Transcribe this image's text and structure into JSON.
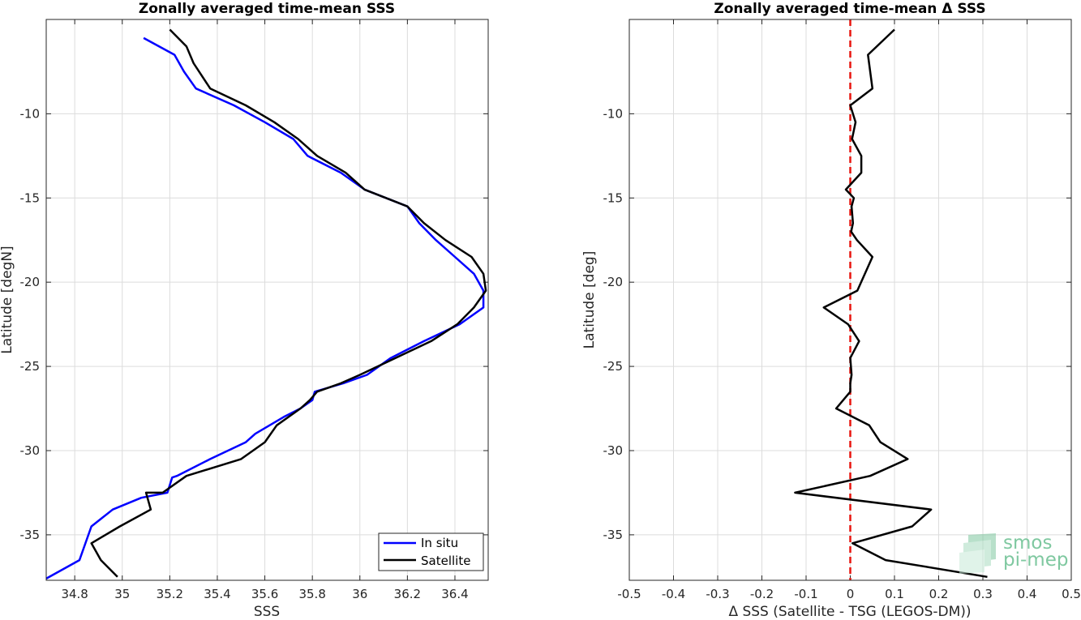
{
  "chart_data": [
    {
      "type": "line",
      "title": "Zonally averaged time-mean SSS",
      "xlabel": "SSS",
      "ylabel": "Latitude [degN]",
      "xlim": [
        34.68,
        36.54
      ],
      "ylim": [
        -37.7,
        -4.4
      ],
      "xticks": [
        34.8,
        35,
        35.2,
        35.4,
        35.6,
        35.8,
        36,
        36.2,
        36.4
      ],
      "xtick_labels": [
        "34.8",
        "35",
        "35.2",
        "35.4",
        "35.6",
        "35.8",
        "36",
        "36.2",
        "36.4"
      ],
      "yticks": [
        -35,
        -30,
        -25,
        -20,
        -15,
        -10
      ],
      "ytick_labels": [
        "-35",
        "-30",
        "-25",
        "-20",
        "-15",
        "-10"
      ],
      "grid": true,
      "legend_position": "bottom-right",
      "series": [
        {
          "name": "In situ",
          "color": "#0000ff",
          "x": [
            35.09,
            35.22,
            35.26,
            35.31,
            35.47,
            35.6,
            35.72,
            35.78,
            35.92,
            36.02,
            36.2,
            36.25,
            36.32,
            36.4,
            36.48,
            36.52,
            36.52,
            36.42,
            36.27,
            36.13,
            36.03,
            35.93,
            35.81,
            35.8,
            35.75,
            35.68,
            35.62,
            35.56,
            35.52,
            35.37,
            35.23,
            35.21,
            35.19,
            35.08,
            34.96,
            34.87,
            34.82,
            34.68
          ],
          "y": [
            -5.5,
            -6.5,
            -7.5,
            -8.5,
            -9.5,
            -10.5,
            -11.5,
            -12.5,
            -13.5,
            -14.5,
            -15.5,
            -16.5,
            -17.5,
            -18.5,
            -19.5,
            -20.5,
            -21.5,
            -22.5,
            -23.5,
            -24.5,
            -25.5,
            -26.0,
            -26.5,
            -27.0,
            -27.5,
            -28.0,
            -28.5,
            -29.0,
            -29.5,
            -30.5,
            -31.5,
            -31.6,
            -32.5,
            -32.8,
            -33.5,
            -34.5,
            -36.5,
            -37.6
          ]
        },
        {
          "name": "Satellite",
          "color": "#000000",
          "x": [
            35.2,
            35.27,
            35.3,
            35.37,
            35.52,
            35.64,
            35.74,
            35.82,
            35.94,
            36.02,
            36.2,
            36.27,
            36.36,
            36.47,
            36.52,
            36.53,
            36.48,
            36.41,
            36.3,
            36.15,
            36.0,
            35.92,
            35.82,
            35.79,
            35.75,
            35.7,
            35.65,
            35.6,
            35.5,
            35.27,
            35.17,
            35.1,
            35.12,
            34.99,
            34.87,
            34.91,
            34.98
          ],
          "y": [
            -5.0,
            -6.0,
            -7.0,
            -8.5,
            -9.5,
            -10.5,
            -11.5,
            -12.5,
            -13.5,
            -14.5,
            -15.5,
            -16.5,
            -17.5,
            -18.5,
            -19.5,
            -20.5,
            -21.5,
            -22.5,
            -23.5,
            -24.5,
            -25.5,
            -26.0,
            -26.5,
            -27.0,
            -27.5,
            -28.0,
            -28.5,
            -29.5,
            -30.5,
            -31.5,
            -32.5,
            -32.5,
            -33.5,
            -34.5,
            -35.5,
            -36.5,
            -37.5
          ]
        }
      ]
    },
    {
      "type": "line",
      "title": "Zonally averaged time-mean Δ SSS",
      "xlabel": "Δ SSS (Satellite - TSG (LEGOS-DM))",
      "ylabel": "Latitude [deg]",
      "xlim": [
        -0.5,
        0.5
      ],
      "ylim": [
        -37.7,
        -4.4
      ],
      "xticks": [
        -0.5,
        -0.4,
        -0.3,
        -0.2,
        -0.1,
        0,
        0.1,
        0.2,
        0.3,
        0.4,
        0.5
      ],
      "xtick_labels": [
        "-0.5",
        "-0.4",
        "-0.3",
        "-0.2",
        "-0.1",
        "0",
        "0.1",
        "0.2",
        "0.3",
        "0.4",
        "0.5"
      ],
      "yticks": [
        -35,
        -30,
        -25,
        -20,
        -15,
        -10
      ],
      "ytick_labels": [
        "-35",
        "-30",
        "-25",
        "-20",
        "-15",
        "-10"
      ],
      "grid": true,
      "reference_line": {
        "x": 0,
        "color": "#e8150f",
        "style": "dashed"
      },
      "series": [
        {
          "color": "#000000",
          "x": [
            0.1,
            0.04,
            0.05,
            0.0,
            0.012,
            0.004,
            0.025,
            0.025,
            -0.01,
            0.008,
            0.003,
            0.006,
            0.002,
            0.015,
            0.05,
            0.016,
            -0.06,
            -0.005,
            0.02,
            0.0,
            0.003,
            0.0,
            0.0,
            -0.032,
            0.043,
            0.068,
            0.13,
            0.045,
            -0.125,
            0.183,
            0.14,
            0.005,
            0.08,
            0.31
          ],
          "y": [
            -5.0,
            -6.5,
            -8.5,
            -9.5,
            -10.5,
            -11.5,
            -12.5,
            -13.5,
            -14.5,
            -15.0,
            -15.5,
            -16.5,
            -17.0,
            -17.5,
            -18.5,
            -20.5,
            -21.5,
            -22.5,
            -23.5,
            -24.5,
            -25.5,
            -26.0,
            -26.5,
            -27.5,
            -28.5,
            -29.5,
            -30.5,
            -31.5,
            -32.5,
            -33.5,
            -34.5,
            -35.5,
            -36.5,
            -37.5
          ]
        }
      ]
    }
  ],
  "logo": {
    "line1": "smos",
    "line2": "pi-mep",
    "color": "#7fc8a0"
  }
}
